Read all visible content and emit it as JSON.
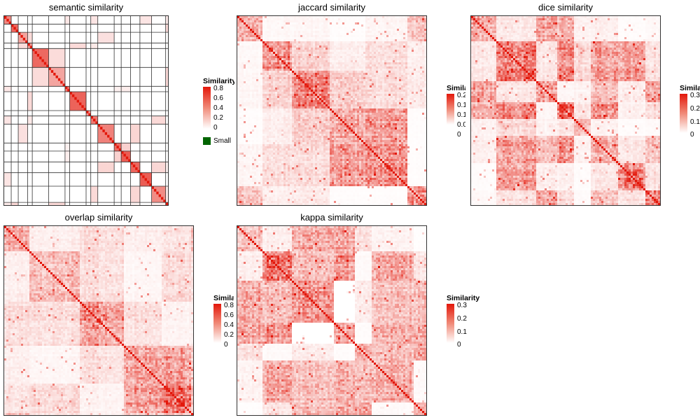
{
  "panels": [
    {
      "title": "semantic similarity",
      "legend": {
        "title": "Similarity",
        "ticks": [
          "0.8",
          "0.6",
          "0.4",
          "0.2",
          "0"
        ],
        "extra": "Small"
      }
    },
    {
      "title": "jaccard similarity",
      "legend": {
        "title": "Similarity",
        "ticks": [
          "0.2",
          "0.1",
          "0.1",
          "0.0",
          "0"
        ]
      }
    },
    {
      "title": "dice similarity",
      "legend": {
        "title": "Similarity",
        "ticks": [
          "0.3",
          "0.2",
          "0.1",
          "0"
        ]
      }
    },
    {
      "title": "overlap similarity",
      "legend": {
        "title": "Similarity",
        "ticks": [
          "0.8",
          "0.6",
          "0.4",
          "0.2",
          "0"
        ]
      }
    },
    {
      "title": "kappa similarity",
      "legend": {
        "title": "Similarity",
        "ticks": [
          "0.3",
          "0.2",
          "0.1",
          "0"
        ]
      }
    }
  ],
  "chart_data": [
    {
      "type": "heatmap",
      "title": "semantic similarity",
      "legend_title": "Similarity",
      "color_range": [
        0,
        0.8
      ],
      "low_color": "#ffffff",
      "high_color": "#e3170a",
      "extra_legend_color": "#006400",
      "pattern": "sparse diagonal blocks with grid lines",
      "seed": 11
    },
    {
      "type": "heatmap",
      "title": "jaccard similarity",
      "legend_title": "Similarity",
      "color_range": [
        0,
        0.2
      ],
      "low_color": "#ffffff",
      "high_color": "#e3170a",
      "pattern": "dense clustered blocks",
      "seed": 23
    },
    {
      "type": "heatmap",
      "title": "dice similarity",
      "legend_title": "Similarity",
      "color_range": [
        0,
        0.3
      ],
      "low_color": "#ffffff",
      "high_color": "#e3170a",
      "pattern": "dense clustered blocks",
      "seed": 37
    },
    {
      "type": "heatmap",
      "title": "overlap similarity",
      "legend_title": "Similarity",
      "color_range": [
        0,
        0.8
      ],
      "low_color": "#ffffff",
      "high_color": "#e3170a",
      "pattern": "dense clustered blocks",
      "seed": 51
    },
    {
      "type": "heatmap",
      "title": "kappa similarity",
      "legend_title": "Similarity",
      "color_range": [
        0,
        0.3
      ],
      "low_color": "#ffffff",
      "high_color": "#e3170a",
      "pattern": "dense clustered blocks",
      "seed": 67
    }
  ]
}
